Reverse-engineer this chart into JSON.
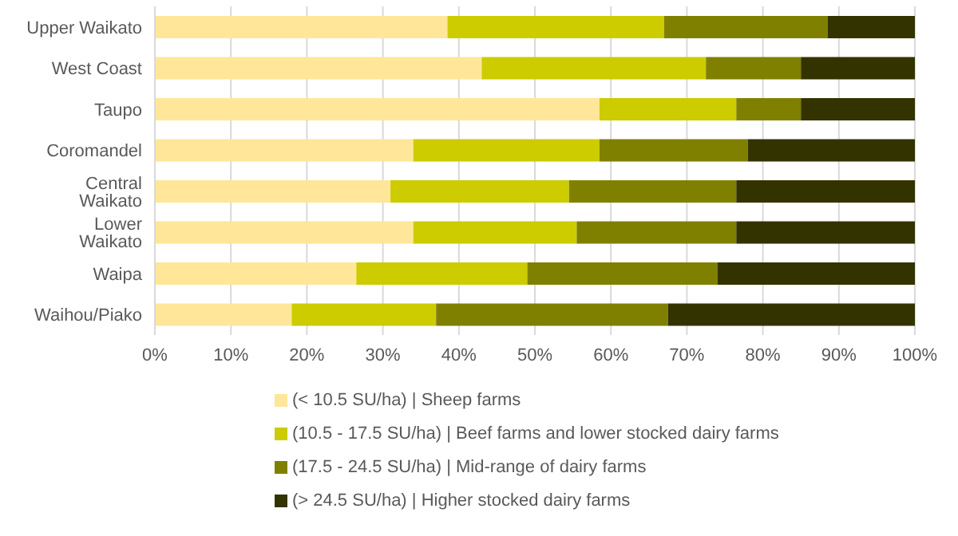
{
  "chart_data": {
    "type": "bar",
    "orientation": "horizontal",
    "stacked": true,
    "categories": [
      "Upper Waikato",
      "West Coast",
      "Taupo",
      "Coromandel",
      "Central Waikato",
      "Lower Waikato",
      "Waipa",
      "Waihou/Piako"
    ],
    "series": [
      {
        "name": "(< 10.5 SU/ha) | Sheep farms",
        "color": "#ffe699",
        "values": [
          38.5,
          43,
          58.5,
          34,
          31,
          34,
          26.5,
          18
        ]
      },
      {
        "name": "(10.5 - 17.5 SU/ha) | Beef farms and lower stocked dairy farms",
        "color": "#cccc00",
        "values": [
          28.5,
          29.5,
          18,
          24.5,
          23.5,
          21.5,
          22.5,
          19
        ]
      },
      {
        "name": "(17.5 - 24.5 SU/ha) | Mid-range of dairy farms",
        "color": "#808000",
        "values": [
          21.5,
          12.5,
          8.5,
          19.5,
          22,
          21,
          25,
          30.5
        ]
      },
      {
        "name": "(> 24.5 SU/ha) | Higher stocked dairy farms",
        "color": "#333300",
        "values": [
          11.5,
          15,
          15,
          22,
          23.5,
          23.5,
          26,
          32.5
        ]
      }
    ],
    "xlim": [
      0,
      100
    ],
    "xticks": [
      {
        "value": 0,
        "label": "0%"
      },
      {
        "value": 10,
        "label": "10%"
      },
      {
        "value": 20,
        "label": "20%"
      },
      {
        "value": 30,
        "label": "30%"
      },
      {
        "value": 40,
        "label": "40%"
      },
      {
        "value": 50,
        "label": "50%"
      },
      {
        "value": 60,
        "label": "60%"
      },
      {
        "value": 70,
        "label": "70%"
      },
      {
        "value": 80,
        "label": "80%"
      },
      {
        "value": 90,
        "label": "90%"
      },
      {
        "value": 100,
        "label": "100%"
      }
    ],
    "grid": "x",
    "legend": "bottom"
  }
}
